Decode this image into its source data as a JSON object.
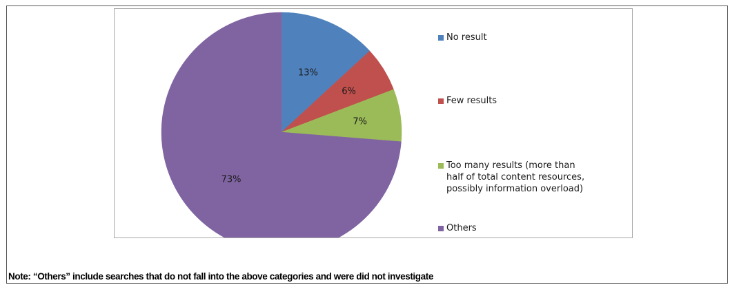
{
  "chart_data": {
    "type": "pie",
    "categories": [
      "No result",
      "Few results",
      "Too many results (more than half of total content resources, possibly information overload)",
      "Others"
    ],
    "values": [
      13,
      6,
      7,
      73
    ],
    "data_labels": [
      "13%",
      "6%",
      "7%",
      "73%"
    ],
    "colors": [
      "#4f81bd",
      "#c0504d",
      "#9bbb59",
      "#8064a2"
    ],
    "start_angle": "12 o'clock",
    "direction": "clockwise",
    "legend_position": "right"
  },
  "legend": {
    "items": [
      "No result",
      "Few results",
      "Too many results (more than half of total content resources, possibly information overload)",
      "Others"
    ]
  },
  "note": "Note: “Others” include searches that do not fall into the above categories and were did not investigate"
}
